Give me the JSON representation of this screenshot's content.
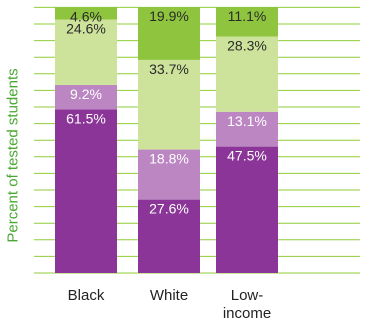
{
  "chart_data": {
    "type": "bar",
    "stacked": true,
    "ylabel": "Percent of tested students",
    "categories": [
      "Black",
      "White",
      "Low-\nincome"
    ],
    "series": [
      {
        "values": [
          61.5,
          27.6,
          47.5
        ],
        "labels": [
          "61.5%",
          "27.6%",
          "47.5%"
        ],
        "color": "#8a3597",
        "text_color": "#ffffff"
      },
      {
        "values": [
          9.2,
          18.8,
          13.1
        ],
        "labels": [
          "9.2%",
          "18.8%",
          "13.1%"
        ],
        "color": "#bb86c2",
        "text_color": "#ffffff"
      },
      {
        "values": [
          24.6,
          33.7,
          28.3
        ],
        "labels": [
          "24.6%",
          "33.7%",
          "28.3%"
        ],
        "color": "#cde39b",
        "text_color": "#2a2a2a"
      },
      {
        "values": [
          4.6,
          19.9,
          11.1
        ],
        "labels": [
          "4.6%",
          "19.9%",
          "11.1%"
        ],
        "color": "#8fc53e",
        "text_color": "#2a2a2a"
      }
    ],
    "ylim": [
      0,
      100
    ],
    "grid": true,
    "gridline_color": "#8fce3a"
  }
}
